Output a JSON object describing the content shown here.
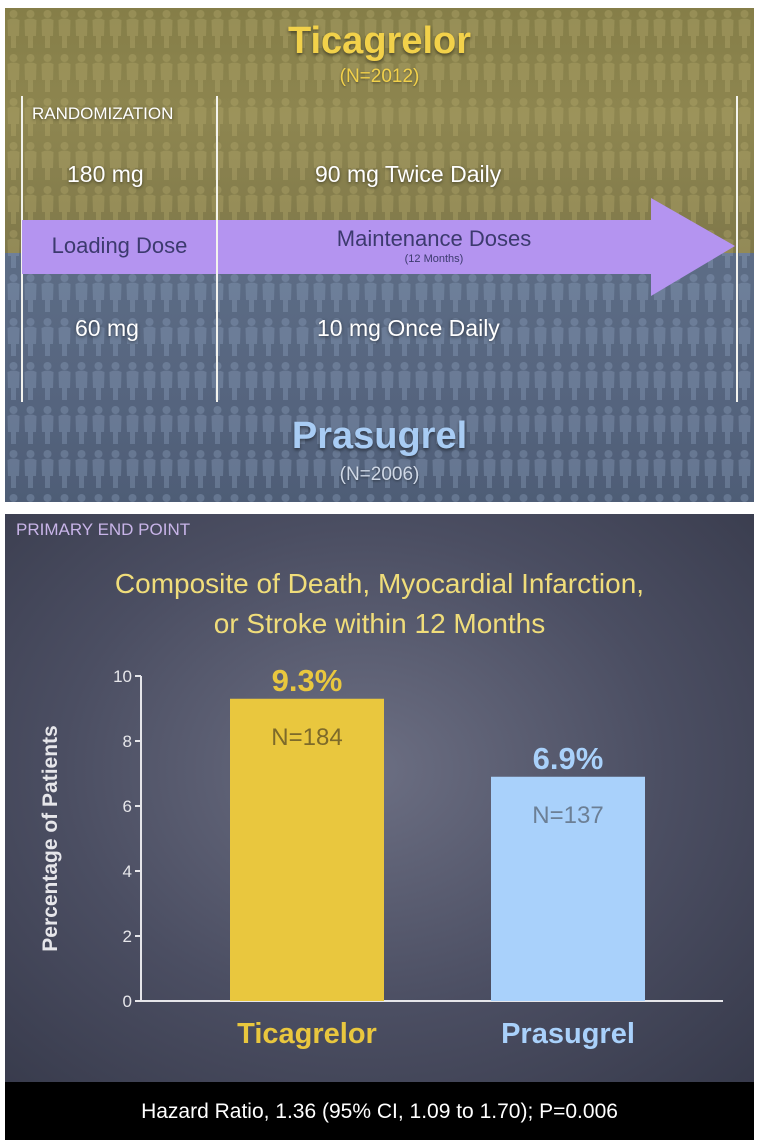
{
  "design": {
    "arm_top": {
      "name": "Ticagrelor",
      "n": "(N=2012)",
      "loading_dose": "180 mg",
      "maintenance_dose": "90 mg Twice Daily"
    },
    "arm_bottom": {
      "name": "Prasugrel",
      "n": "(N=2006)",
      "loading_dose": "60 mg",
      "maintenance_dose": "10 mg Once Daily"
    },
    "randomization_label": "RANDOMIZATION",
    "loading_label": "Loading Dose",
    "maintenance_label": "Maintenance Doses",
    "maintenance_duration": "(12 Months)",
    "colors": {
      "ticagrelor": "#f2d14a",
      "prasugrel": "#a8ccf4",
      "arrow": "#b494f0"
    }
  },
  "chart_panel": {
    "tag": "PRIMARY END POINT",
    "title_line1": "Composite of Death, Myocardial Infarction,",
    "title_line2": "or Stroke within 12 Months",
    "footer": "Hazard Ratio, 1.36 (95% CI, 1.09 to 1.70); P=0.006"
  },
  "chart_data": {
    "type": "bar",
    "categories": [
      "Ticagrelor",
      "Prasugrel"
    ],
    "values": [
      9.3,
      6.9
    ],
    "value_labels": [
      "9.3%",
      "6.9%"
    ],
    "n_labels": [
      "N=184",
      "N=137"
    ],
    "colors": [
      "#e9c73e",
      "#a9d1fb"
    ],
    "category_label_colors": [
      "#e9c73e",
      "#a9d1fb"
    ],
    "ylabel": "Percentage of Patients",
    "ylim": [
      0,
      10
    ],
    "yticks": [
      0,
      2,
      4,
      6,
      8,
      10
    ],
    "grid": false,
    "legend": "none"
  }
}
